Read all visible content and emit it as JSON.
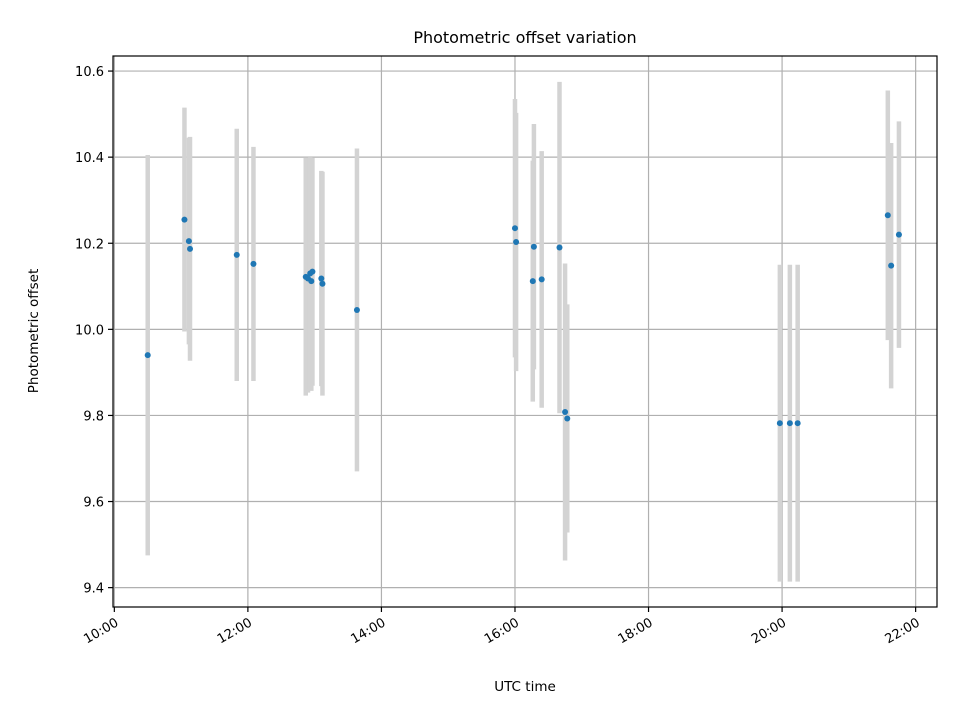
{
  "chart_data": {
    "type": "scatter",
    "title": "Photometric offset variation",
    "xlabel": "UTC time",
    "ylabel": "Photometric offset",
    "xlim_hours": [
      9.98,
      22.32
    ],
    "ylim": [
      9.355,
      10.635
    ],
    "x_ticks": [
      {
        "hour": 10,
        "label": "10:00"
      },
      {
        "hour": 12,
        "label": "12:00"
      },
      {
        "hour": 14,
        "label": "14:00"
      },
      {
        "hour": 16,
        "label": "16:00"
      },
      {
        "hour": 18,
        "label": "18:00"
      },
      {
        "hour": 20,
        "label": "20:00"
      },
      {
        "hour": 22,
        "label": "22:00"
      }
    ],
    "y_ticks": [
      {
        "value": 9.4,
        "label": "9.4"
      },
      {
        "value": 9.6,
        "label": "9.6"
      },
      {
        "value": 9.8,
        "label": "9.8"
      },
      {
        "value": 10.0,
        "label": "10.0"
      },
      {
        "value": 10.2,
        "label": "10.2"
      },
      {
        "value": 10.4,
        "label": "10.4"
      },
      {
        "value": 10.6,
        "label": "10.6"
      }
    ],
    "grid": true,
    "marker_color": "#1f77b4",
    "errorbar_color": "#d3d3d3",
    "points": [
      {
        "time": "10:30",
        "y": 9.94,
        "err": 0.465
      },
      {
        "time": "11:03",
        "y": 10.255,
        "err": 0.26
      },
      {
        "time": "11:07",
        "y": 10.205,
        "err": 0.24
      },
      {
        "time": "11:08",
        "y": 10.187,
        "err": 0.26
      },
      {
        "time": "11:50",
        "y": 10.173,
        "err": 0.293
      },
      {
        "time": "12:05",
        "y": 10.152,
        "err": 0.272
      },
      {
        "time": "12:52",
        "y": 10.122,
        "err": 0.276
      },
      {
        "time": "12:54",
        "y": 10.118,
        "err": 0.265
      },
      {
        "time": "12:56",
        "y": 10.13,
        "err": 0.27
      },
      {
        "time": "12:57",
        "y": 10.112,
        "err": 0.255
      },
      {
        "time": "12:58",
        "y": 10.134,
        "err": 0.265
      },
      {
        "time": "13:06",
        "y": 10.118,
        "err": 0.25
      },
      {
        "time": "13:07",
        "y": 10.106,
        "err": 0.26
      },
      {
        "time": "13:38",
        "y": 10.045,
        "err": 0.375
      },
      {
        "time": "16:00",
        "y": 10.235,
        "err": 0.3
      },
      {
        "time": "16:01",
        "y": 10.203,
        "err": 0.3
      },
      {
        "time": "16:16",
        "y": 10.112,
        "err": 0.28
      },
      {
        "time": "16:17",
        "y": 10.192,
        "err": 0.285
      },
      {
        "time": "16:24",
        "y": 10.116,
        "err": 0.298
      },
      {
        "time": "16:40",
        "y": 10.19,
        "err": 0.385
      },
      {
        "time": "16:45",
        "y": 9.808,
        "err": 0.345
      },
      {
        "time": "16:47",
        "y": 9.793,
        "err": 0.265
      },
      {
        "time": "19:58",
        "y": 9.782,
        "err": 0.368
      },
      {
        "time": "20:07",
        "y": 9.782,
        "err": 0.368
      },
      {
        "time": "20:14",
        "y": 9.782,
        "err": 0.368
      },
      {
        "time": "21:35",
        "y": 10.265,
        "err": 0.29
      },
      {
        "time": "21:38",
        "y": 10.148,
        "err": 0.285
      },
      {
        "time": "21:45",
        "y": 10.22,
        "err": 0.263
      }
    ]
  }
}
